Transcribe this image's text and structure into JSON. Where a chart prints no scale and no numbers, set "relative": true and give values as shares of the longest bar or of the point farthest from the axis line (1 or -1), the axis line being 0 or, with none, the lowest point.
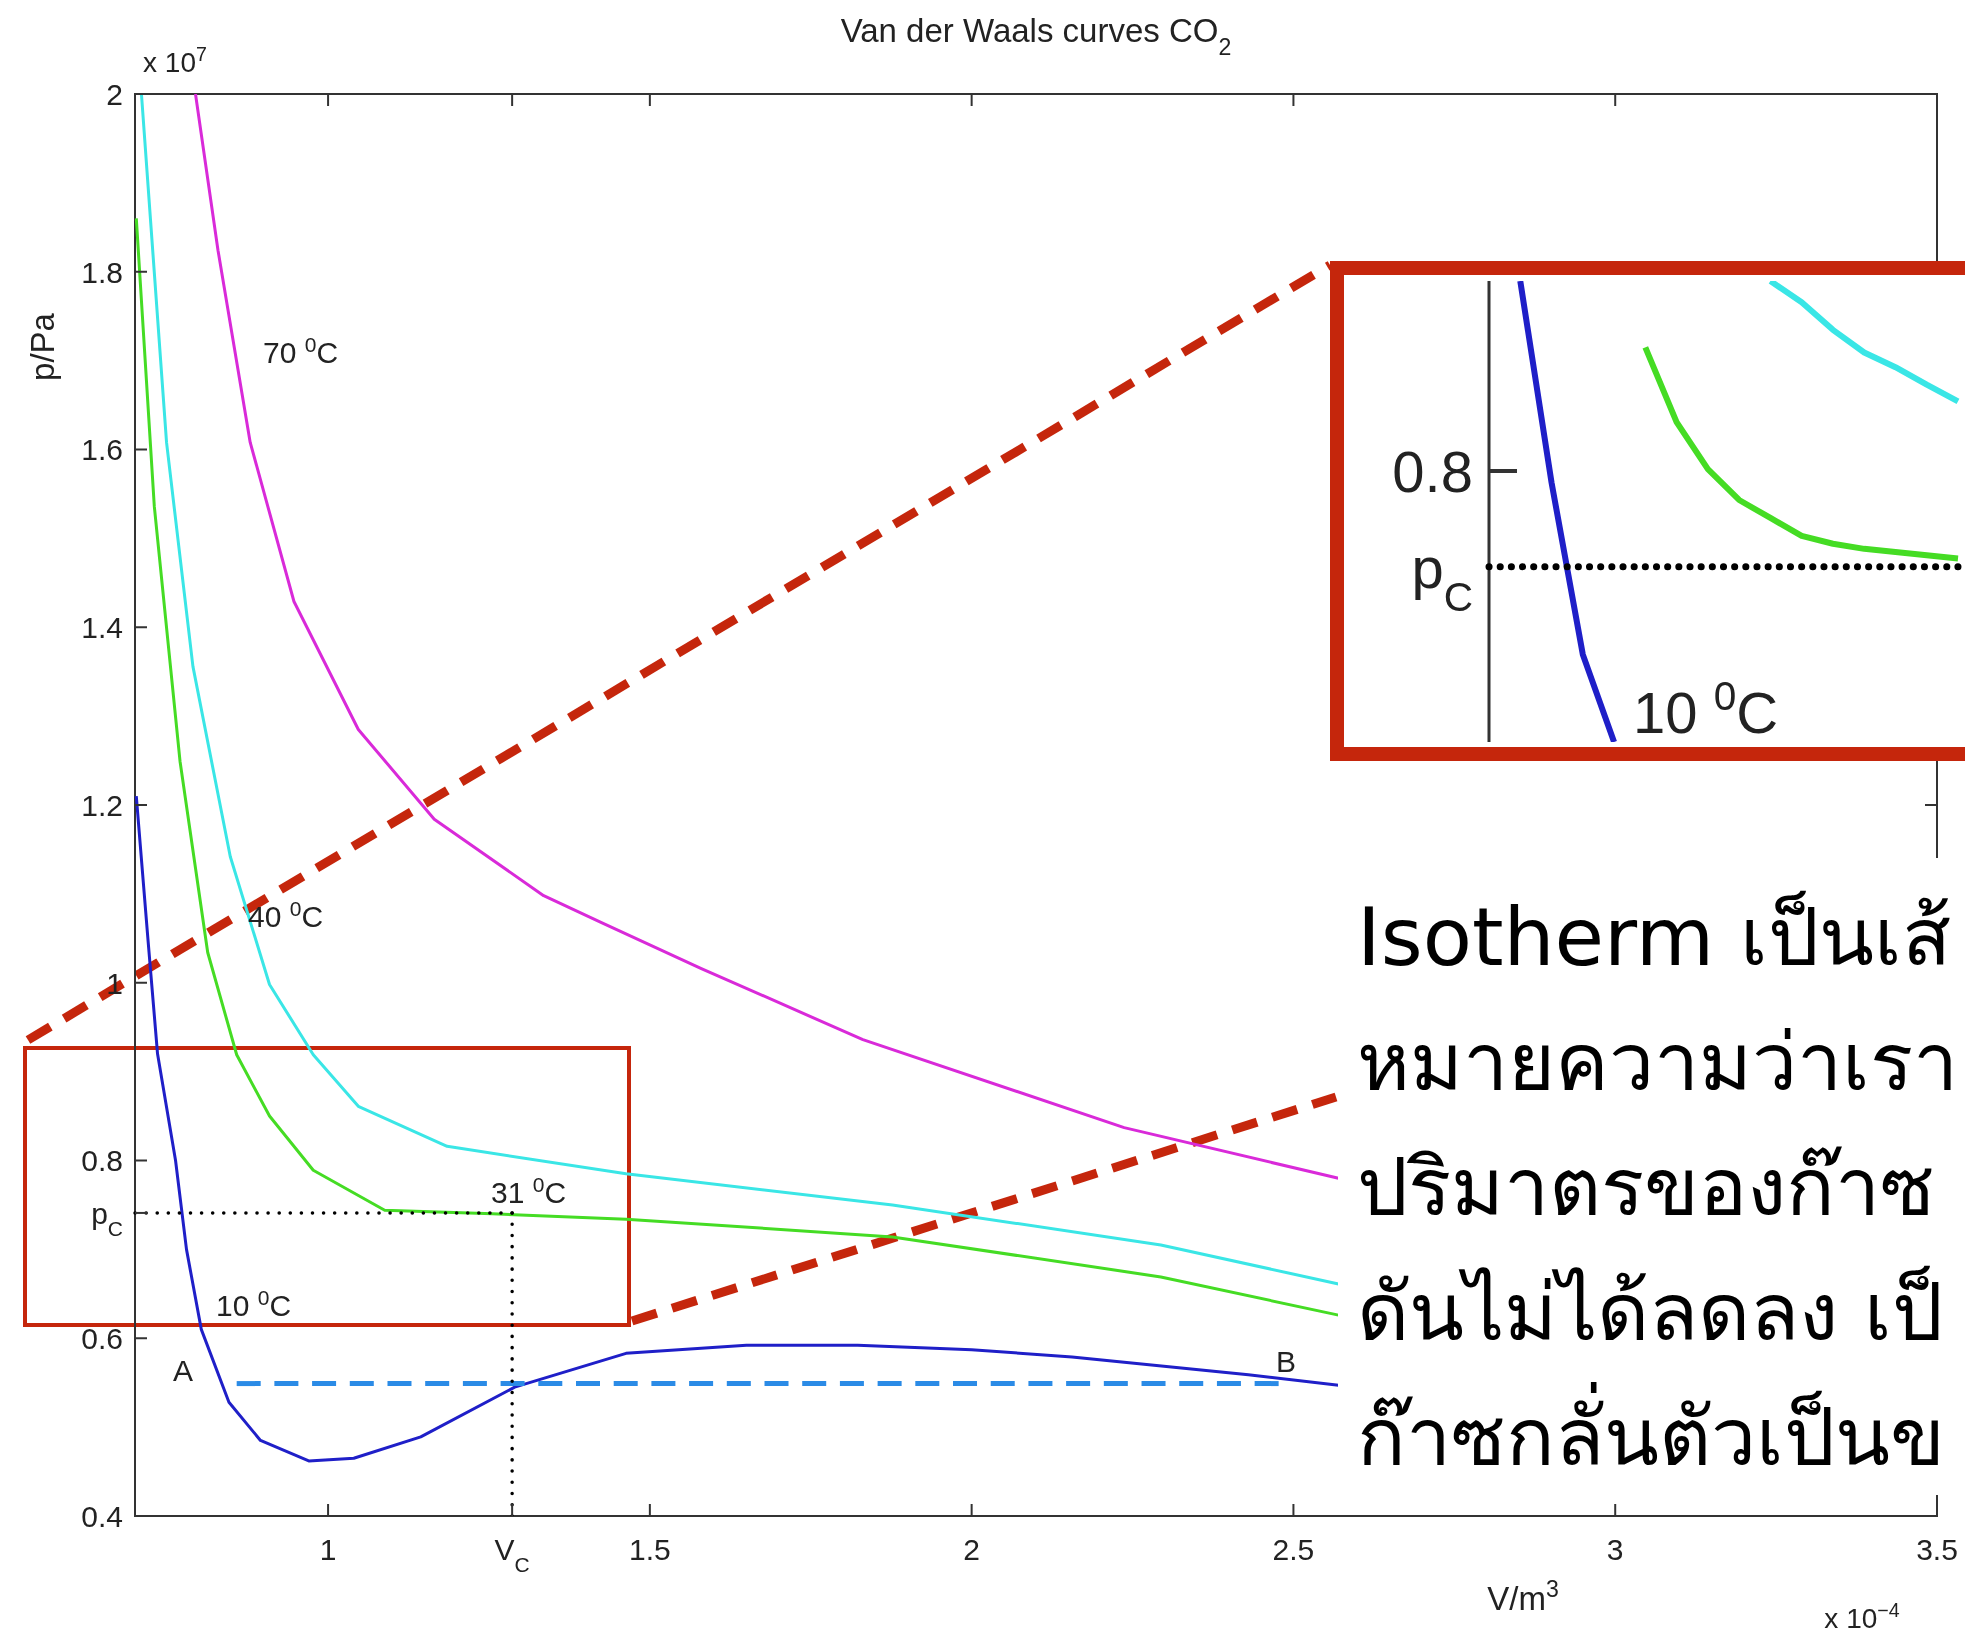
{
  "chart_data": [
    {
      "type": "line",
      "title": "Van der Waals curves CO$_{2}$",
      "xlabel": "V/m$^{3}$",
      "ylabel": "p/Pa",
      "line_style": "solid",
      "xlim": [
        0.7,
        3.5
      ],
      "ylim": [
        0.4,
        2
      ],
      "xticks": [
        1,
        {
          "value": 1.286,
          "label": "V$_{C}$"
        },
        1.5,
        2,
        2.5,
        3,
        3.5
      ],
      "yticks": [
        0.4,
        0.6,
        {
          "value": 0.741,
          "label": "p$_{C}$"
        },
        0.8,
        1,
        1.2,
        1.4,
        1.6,
        1.8,
        2
      ],
      "series": [
        {
          "color": "#d92ad9",
          "x": [
            0.794,
            0.829,
            0.879,
            0.947,
            1.047,
            1.165,
            1.335,
            1.424,
            1.58,
            1.831,
            2.237,
            2.57
          ],
          "values": [
            2.0,
            1.824,
            1.608,
            1.429,
            1.285,
            1.184,
            1.098,
            1.068,
            1.016,
            0.936,
            0.837,
            0.78
          ]
        },
        {
          "color": "#3ae6e6",
          "x": [
            0.71,
            0.749,
            0.79,
            0.848,
            0.909,
            0.977,
            1.047,
            1.185,
            1.463,
            1.877,
            2.294,
            2.57
          ],
          "values": [
            2.0,
            1.608,
            1.356,
            1.142,
            0.998,
            0.919,
            0.861,
            0.816,
            0.785,
            0.75,
            0.705,
            0.661
          ]
        },
        {
          "color": "#45dc24",
          "x": [
            0.702,
            0.73,
            0.77,
            0.813,
            0.858,
            0.909,
            0.977,
            1.088,
            1.255,
            1.463,
            1.877,
            2.294,
            2.57
          ],
          "values": [
            1.86,
            1.536,
            1.249,
            1.034,
            0.919,
            0.85,
            0.789,
            0.744,
            0.74,
            0.734,
            0.714,
            0.669,
            0.626
          ]
        },
        {
          "color": "#1f1fc8",
          "x": [
            0.702,
            0.72,
            0.735,
            0.763,
            0.78,
            0.803,
            0.846,
            0.895,
            0.97,
            1.04,
            1.144,
            1.29,
            1.463,
            1.65,
            1.823,
            2.0,
            2.156,
            2.43,
            2.57
          ],
          "values": [
            1.21,
            1.05,
            0.92,
            0.8,
            0.7,
            0.61,
            0.528,
            0.485,
            0.462,
            0.465,
            0.489,
            0.545,
            0.583,
            0.592,
            0.592,
            0.587,
            0.579,
            0.559,
            0.547
          ]
        },
        {
          "color": "#2b8be6",
          "line_style": "dashed",
          "x": [
            0.858,
            2.477
          ],
          "values": [
            0.549,
            0.549
          ]
        },
        {
          "color": "#000000",
          "line_style": "dotted",
          "x": [
            0.7,
            1.286
          ],
          "values": [
            0.741,
            0.741
          ]
        },
        {
          "color": "#000000",
          "line_style": "dotted",
          "x": [
            1.286,
            1.286
          ],
          "values": [
            0.4,
            0.741
          ]
        }
      ],
      "annotations": [
        "x 10$^{7}$",
        "x 10$^{−4}$",
        "70 $^{0}$C",
        "40 $^{0}$C",
        "31 $^{0}$C",
        "10 $^{0}$C",
        "A",
        "B",
        "Isotherm เป็นเส้",
        "หมายความว่าเรา",
        "ปริมาตรของก๊าซ",
        "ดันไม่ได้ลดลง เป็",
        "ก๊าซกลั่นตัวเป็นข"
      ]
    },
    {
      "type": "line",
      "line_style": "solid",
      "relative": true,
      "categories": [
        null,
        null,
        null,
        null,
        null,
        null,
        null,
        null,
        null,
        null,
        null,
        null,
        null,
        null,
        null,
        null
      ],
      "series": [
        {
          "color": "#3ae6e6",
          "values": [
            null,
            null,
            null,
            null,
            null,
            null,
            null,
            null,
            null,
            1.0,
            0.954,
            0.894,
            0.845,
            0.813,
            0.775,
            0.739
          ]
        },
        {
          "color": "#45dc24",
          "values": [
            null,
            null,
            null,
            null,
            null,
            0.856,
            0.694,
            0.592,
            0.525,
            0.486,
            0.447,
            0.43,
            0.419,
            0.412,
            0.405,
            0.398
          ]
        },
        {
          "color": "#1f1fc8",
          "values": [
            null,
            1.0,
            0.563,
            0.19,
            0.0,
            null,
            null,
            null,
            null,
            null,
            null,
            null,
            null,
            null,
            null,
            null
          ]
        },
        {
          "color": "#000000",
          "line_style": "dotted",
          "values": [
            0.38,
            0.38,
            0.38,
            0.38,
            0.38,
            0.38,
            0.38,
            0.38,
            0.38,
            0.38,
            0.38,
            0.38,
            0.38,
            0.38,
            0.38,
            0.38
          ]
        }
      ],
      "annotations": [
        "0.8",
        "p$_{C}$",
        "10 $^{0}$C"
      ]
    }
  ]
}
